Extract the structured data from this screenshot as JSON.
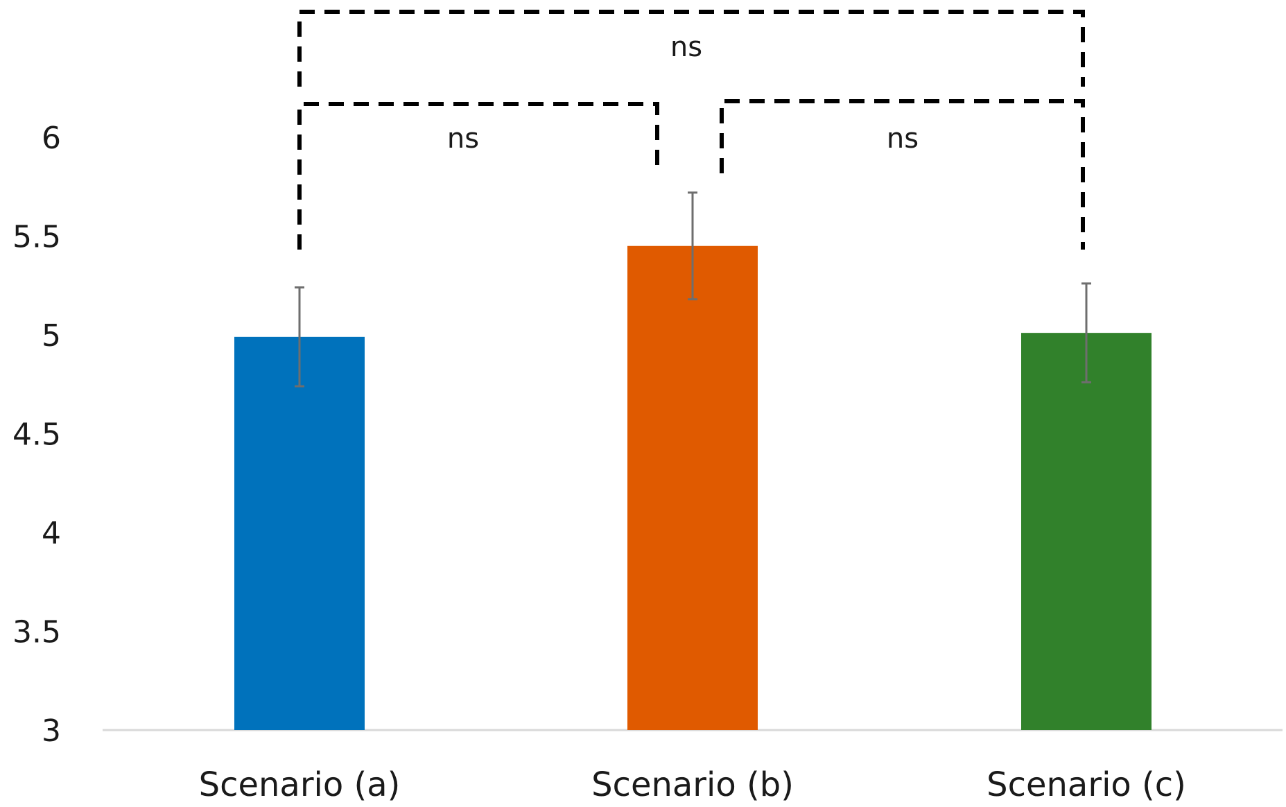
{
  "chart_data": {
    "type": "bar",
    "categories": [
      "Scenario (a)",
      "Scenario (b)",
      "Scenario (c)"
    ],
    "values": [
      4.99,
      5.45,
      5.01
    ],
    "errors": [
      0.25,
      0.27,
      0.25
    ],
    "colors": [
      "#0072BC",
      "#E05A00",
      "#31812B"
    ],
    "ylim": [
      3,
      6.25
    ],
    "yticks": [
      "3",
      "3.5",
      "4",
      "4.5",
      "5",
      "5.5",
      "6"
    ],
    "ytick_values": [
      3,
      3.5,
      4,
      4.5,
      5,
      5.5,
      6
    ],
    "title": "",
    "xlabel": "",
    "ylabel": "",
    "grid": false,
    "significance": [
      {
        "from": 0,
        "to": 1,
        "label": "ns"
      },
      {
        "from": 1,
        "to": 2,
        "label": "ns"
      },
      {
        "from": 0,
        "to": 2,
        "label": "ns"
      }
    ]
  }
}
